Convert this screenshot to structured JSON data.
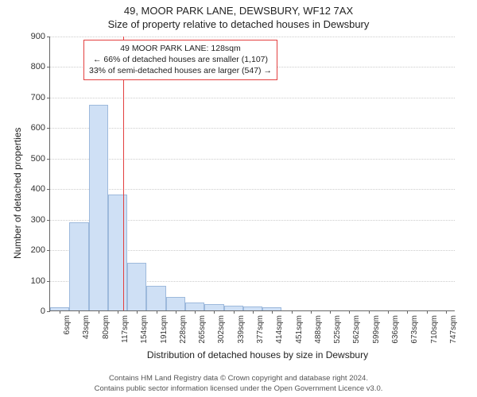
{
  "title": "49, MOOR PARK LANE, DEWSBURY, WF12 7AX",
  "subtitle": "Size of property relative to detached houses in Dewsbury",
  "chart": {
    "type": "histogram",
    "y_axis_label": "Number of detached properties",
    "x_axis_label": "Distribution of detached houses by size in Dewsbury",
    "ylim": [
      0,
      900
    ],
    "ytick_step": 100,
    "yticks": [
      0,
      100,
      200,
      300,
      400,
      500,
      600,
      700,
      800,
      900
    ],
    "x_categories": [
      "6sqm",
      "43sqm",
      "80sqm",
      "117sqm",
      "154sqm",
      "191sqm",
      "228sqm",
      "265sqm",
      "302sqm",
      "339sqm",
      "377sqm",
      "414sqm",
      "451sqm",
      "488sqm",
      "525sqm",
      "562sqm",
      "599sqm",
      "636sqm",
      "673sqm",
      "710sqm",
      "747sqm"
    ],
    "bar_values": [
      10,
      290,
      675,
      380,
      155,
      80,
      45,
      25,
      22,
      15,
      12,
      10,
      0,
      0,
      0,
      0,
      0,
      0,
      0,
      0,
      0
    ],
    "bar_fill": "#cfe0f5",
    "bar_stroke": "#9db9dc",
    "bar_width_ratio": 1.0,
    "grid_color": "#cccccc",
    "axis_color": "#666666",
    "background": "#ffffff",
    "marker": {
      "x_value_sqm": 128,
      "color": "#e34040"
    },
    "annotation": {
      "lines": [
        "49 MOOR PARK LANE: 128sqm",
        "← 66% of detached houses are smaller (1,107)",
        "33% of semi-detached houses are larger (547) →"
      ],
      "border_color": "#e34040",
      "fontsize": 10.5
    },
    "title_fontsize": 13,
    "axis_label_fontsize": 12,
    "tick_fontsize": 11
  },
  "footer": {
    "line1": "Contains HM Land Registry data © Crown copyright and database right 2024.",
    "line2": "Contains public sector information licensed under the Open Government Licence v3.0."
  }
}
